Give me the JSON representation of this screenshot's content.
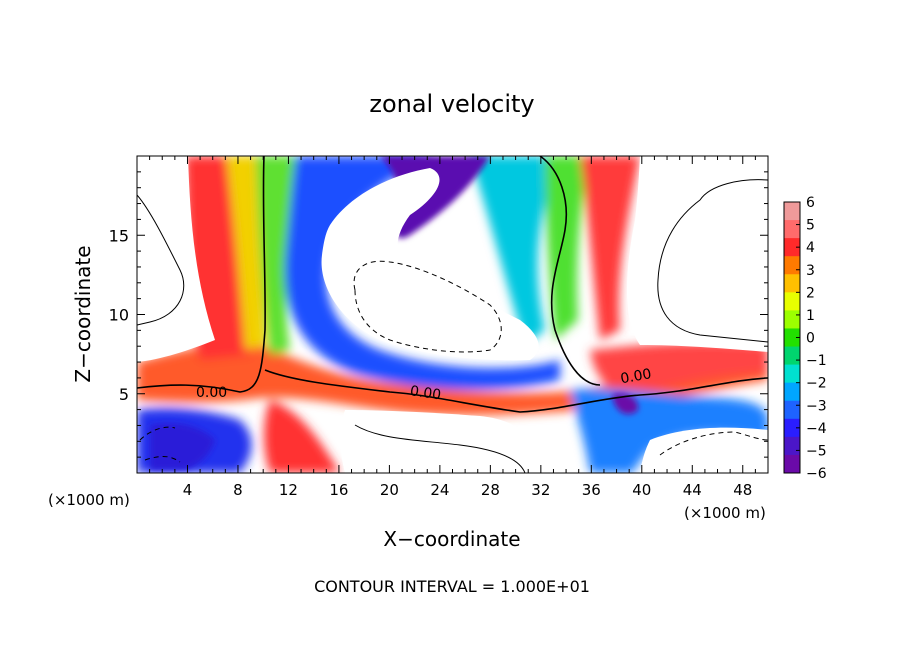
{
  "chart_data": {
    "type": "heatmap",
    "title": "zonal velocity",
    "xlabel": "X−coordinate",
    "ylabel": "Z−coordinate",
    "x_unit_left": "(×1000 m)",
    "x_unit_right": "(×1000 m)",
    "footer": "CONTOUR INTERVAL = 1.000E+01",
    "xlim": [
      0,
      50
    ],
    "ylim": [
      0,
      20
    ],
    "x_ticks": [
      4,
      8,
      12,
      16,
      20,
      24,
      28,
      32,
      36,
      40,
      44,
      48
    ],
    "y_ticks": [
      5,
      10,
      15
    ],
    "contour_labels": [
      "0.00",
      "0.00",
      "0.00"
    ],
    "colorbar": {
      "labels": [
        "6",
        "5",
        "4",
        "3",
        "2",
        "1",
        "0",
        "−1",
        "−2",
        "−3",
        "−4",
        "−5",
        "−6"
      ],
      "min": -6,
      "max": 6,
      "colors": [
        "#ef9a9a",
        "#ff6b6b",
        "#ff2a2a",
        "#ff7a00",
        "#ffc000",
        "#e8ff00",
        "#9cff00",
        "#22e000",
        "#00d56e",
        "#00e0d0",
        "#00a6ff",
        "#1e63ff",
        "#2a1eff",
        "#4b16c8",
        "#6a0aa8"
      ]
    },
    "fields": [
      {
        "name": "red-left",
        "value": 5,
        "color": "#ff3030"
      },
      {
        "name": "yellow-left",
        "value": 2,
        "color": "#f0e000"
      },
      {
        "name": "blue-core",
        "value": -4,
        "color": "#1f4dff"
      },
      {
        "name": "purple-top",
        "value": -6,
        "color": "#5a10b0"
      },
      {
        "name": "green-mid",
        "value": 0.5,
        "color": "#6dea2a"
      },
      {
        "name": "red-right",
        "value": 4.5,
        "color": "#ff4040"
      },
      {
        "name": "blue-bottom-left",
        "value": -4.5,
        "color": "#2030ee"
      },
      {
        "name": "blue-bottom-right",
        "value": -3.5,
        "color": "#1e80ff"
      }
    ]
  }
}
